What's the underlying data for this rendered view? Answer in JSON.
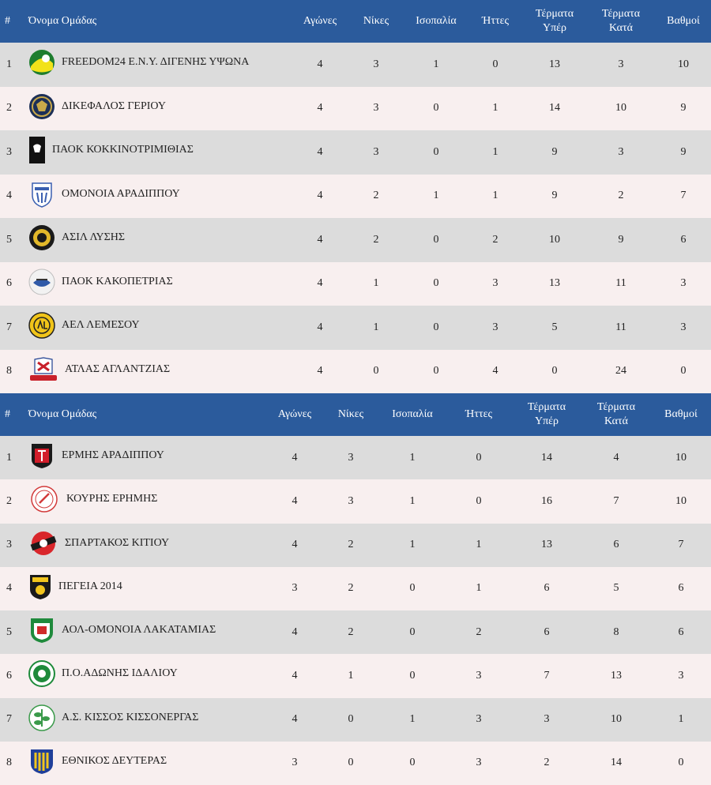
{
  "columns": {
    "pos": "#",
    "team": "Όνομα Ομάδας",
    "played": "Αγώνες",
    "wins": "Νίκες",
    "draws": "Ισοπαλία",
    "losses": "Ήττες",
    "gf_line1": "Τέρματα",
    "gf_line2": "Υπέρ",
    "ga_line1": "Τέρματα",
    "ga_line2": "Κατά",
    "points": "Βαθμοί"
  },
  "groups": [
    {
      "rows": [
        {
          "pos": "1",
          "team": "FREEDOM24 Ε.Ν.Υ. ΔΙΓΕΝΗΣ ΥΨΩΝΑ",
          "played": "4",
          "wins": "3",
          "draws": "1",
          "losses": "0",
          "gf": "13",
          "ga": "3",
          "points": "10",
          "logo": "diogenis-ypsona-logo"
        },
        {
          "pos": "2",
          "team": "ΔΙΚΕΦΑΛΟΣ ΓΕΡΙΟΥ",
          "played": "4",
          "wins": "3",
          "draws": "0",
          "losses": "1",
          "gf": "14",
          "ga": "10",
          "points": "9",
          "logo": "dikefalos-geriou-logo"
        },
        {
          "pos": "3",
          "team": "ΠΑΟΚ ΚΟΚΚΙΝΟΤΡΙΜΙΘΙΑΣ",
          "played": "4",
          "wins": "3",
          "draws": "0",
          "losses": "1",
          "gf": "9",
          "ga": "3",
          "points": "9",
          "logo": "paok-kokkinotrimithias-logo"
        },
        {
          "pos": "4",
          "team": "ΟΜΟΝΟΙΑ ΑΡΑΔΙΠΠΟΥ",
          "played": "4",
          "wins": "2",
          "draws": "1",
          "losses": "1",
          "gf": "9",
          "ga": "2",
          "points": "7",
          "logo": "omonoia-aradippou-logo"
        },
        {
          "pos": "5",
          "team": "ΑΣΙΛ ΛΥΣΗΣ",
          "played": "4",
          "wins": "2",
          "draws": "0",
          "losses": "2",
          "gf": "10",
          "ga": "9",
          "points": "6",
          "logo": "asil-lysis-logo"
        },
        {
          "pos": "6",
          "team": "ΠΑΟΚ ΚΑΚΟΠΕΤΡΙΑΣ",
          "played": "4",
          "wins": "1",
          "draws": "0",
          "losses": "3",
          "gf": "13",
          "ga": "11",
          "points": "3",
          "logo": "paok-kakopetrias-logo"
        },
        {
          "pos": "7",
          "team": "ΑΕΛ ΛΕΜΕΣΟΥ",
          "played": "4",
          "wins": "1",
          "draws": "0",
          "losses": "3",
          "gf": "5",
          "ga": "11",
          "points": "3",
          "logo": "ael-lemesou-logo"
        },
        {
          "pos": "8",
          "team": "ΑΤΛΑΣ ΑΓΛΑΝΤΖΙΑΣ",
          "played": "4",
          "wins": "0",
          "draws": "0",
          "losses": "4",
          "gf": "0",
          "ga": "24",
          "points": "0",
          "logo": "atlas-aglantzias-logo"
        }
      ]
    },
    {
      "rows": [
        {
          "pos": "1",
          "team": "ΕΡΜΗΣ ΑΡΑΔΙΠΠΟΥ",
          "played": "4",
          "wins": "3",
          "draws": "1",
          "losses": "0",
          "gf": "14",
          "ga": "4",
          "points": "10",
          "logo": "ermis-aradippou-logo"
        },
        {
          "pos": "2",
          "team": "ΚΟΥΡΗΣ ΕΡΗΜΗΣ",
          "played": "4",
          "wins": "3",
          "draws": "1",
          "losses": "0",
          "gf": "16",
          "ga": "7",
          "points": "10",
          "logo": "kouris-erimis-logo"
        },
        {
          "pos": "3",
          "team": "ΣΠΑΡΤΑΚΟΣ ΚΙΤΙΟΥ",
          "played": "4",
          "wins": "2",
          "draws": "1",
          "losses": "1",
          "gf": "13",
          "ga": "6",
          "points": "7",
          "logo": "spartakos-kitiou-logo"
        },
        {
          "pos": "4",
          "team": "ΠΕΓΕΙΑ 2014",
          "played": "3",
          "wins": "2",
          "draws": "0",
          "losses": "1",
          "gf": "6",
          "ga": "5",
          "points": "6",
          "logo": "pegeia-2014-logo"
        },
        {
          "pos": "5",
          "team": "ΑΟΛ-ΟΜΟΝΟΙΑ ΛΑΚΑΤΑΜΙΑΣ",
          "played": "4",
          "wins": "2",
          "draws": "0",
          "losses": "2",
          "gf": "6",
          "ga": "8",
          "points": "6",
          "logo": "aol-omonoia-lakatamias-logo"
        },
        {
          "pos": "6",
          "team": "Π.Ο.ΑΔΩΝΗΣ ΙΔΑΛΙΟΥ",
          "played": "4",
          "wins": "1",
          "draws": "0",
          "losses": "3",
          "gf": "7",
          "ga": "13",
          "points": "3",
          "logo": "adonis-idaliou-logo"
        },
        {
          "pos": "7",
          "team": "Α.Σ. ΚΙΣΣΟΣ ΚΙΣΣΟΝΕΡΓΑΣ",
          "played": "4",
          "wins": "0",
          "draws": "1",
          "losses": "3",
          "gf": "3",
          "ga": "10",
          "points": "1",
          "logo": "kissos-kissonergas-logo"
        },
        {
          "pos": "8",
          "team": "ΕΘΝΙΚΟΣ ΔΕΥΤΕΡΑΣ",
          "played": "3",
          "wins": "0",
          "draws": "0",
          "losses": "3",
          "gf": "2",
          "ga": "14",
          "points": "0",
          "logo": "ethnikos-defteras-logo"
        }
      ]
    }
  ]
}
